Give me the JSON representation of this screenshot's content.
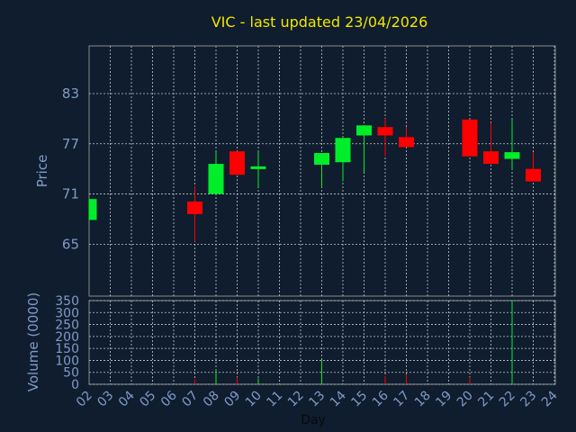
{
  "title": "VIC - last updated 23/04/2026",
  "colors": {
    "background": "#0f1d2e",
    "title": "#f2e600",
    "up": "#00ee2a",
    "down": "#ff0000",
    "text": "#7f9bc9"
  },
  "chart_data": {
    "type": "candlestick",
    "title": "VIC - last updated 23/04/2026",
    "xlabel": "Day",
    "ylabel": "Price",
    "volume_label": "Volume (0000)",
    "x_ticks": [
      "02",
      "03",
      "04",
      "05",
      "06",
      "07",
      "08",
      "09",
      "10",
      "11",
      "12",
      "13",
      "14",
      "15",
      "16",
      "17",
      "18",
      "19",
      "20",
      "21",
      "22",
      "23",
      "24"
    ],
    "y_ticks": [
      65,
      71,
      77,
      83
    ],
    "ylim": [
      58.8,
      88.7
    ],
    "volume_ticks": [
      0,
      50,
      100,
      150,
      200,
      250,
      300,
      350
    ],
    "volume_ylim": [
      0,
      350
    ],
    "grid": true,
    "candles": [
      {
        "day": "02",
        "open": 67.9,
        "close": 70.4,
        "high": 70.4,
        "low": 67.9,
        "volume": 0
      },
      {
        "day": "07",
        "open": 70.1,
        "close": 68.6,
        "high": 71.9,
        "low": 65.3,
        "volume": 20
      },
      {
        "day": "08",
        "open": 71.0,
        "close": 74.6,
        "high": 76.1,
        "low": 71.0,
        "volume": 60
      },
      {
        "day": "09",
        "open": 76.1,
        "close": 73.3,
        "high": 76.1,
        "low": 73.3,
        "volume": 30
      },
      {
        "day": "10",
        "open": 74.0,
        "close": 74.3,
        "high": 76.1,
        "low": 71.8,
        "volume": 25
      },
      {
        "day": "13",
        "open": 74.5,
        "close": 75.9,
        "high": 75.9,
        "low": 71.8,
        "volume": 100
      },
      {
        "day": "14",
        "open": 74.8,
        "close": 77.7,
        "high": 77.7,
        "low": 72.5,
        "volume": 0
      },
      {
        "day": "15",
        "open": 78.0,
        "close": 79.2,
        "high": 79.2,
        "low": 73.6,
        "volume": 0
      },
      {
        "day": "16",
        "open": 79.0,
        "close": 78.0,
        "high": 80.0,
        "low": 75.5,
        "volume": 35
      },
      {
        "day": "17",
        "open": 77.8,
        "close": 76.6,
        "high": 79.0,
        "low": 76.6,
        "volume": 40
      },
      {
        "day": "20",
        "open": 79.9,
        "close": 75.5,
        "high": 79.9,
        "low": 75.5,
        "volume": 30
      },
      {
        "day": "21",
        "open": 76.1,
        "close": 74.6,
        "high": 79.5,
        "low": 74.6,
        "volume": 0
      },
      {
        "day": "22",
        "open": 75.2,
        "close": 76.0,
        "high": 79.9,
        "low": 73.9,
        "volume": 350
      },
      {
        "day": "23",
        "open": 74.0,
        "close": 72.5,
        "high": 76.0,
        "low": 72.5,
        "volume": 0
      }
    ]
  }
}
